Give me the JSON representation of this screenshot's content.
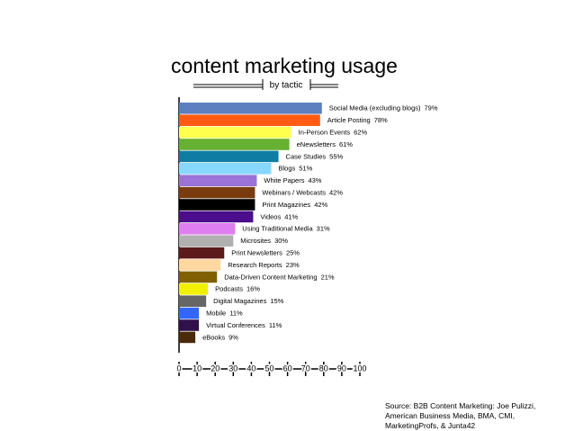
{
  "chart_data": {
    "type": "bar",
    "orientation": "horizontal",
    "title": "content marketing usage",
    "subtitle": "by tactic",
    "categories": [
      "Social Media (excluding blogs)",
      "Article Posting",
      "In-Person Events",
      "eNewsletters",
      "Case Studies",
      "Blogs",
      "White Papers",
      "Webinars / Webcasts",
      "Print Magazines",
      "Videos",
      "Using Traditional Media",
      "Microsites",
      "Print Newsletters",
      "Research Reports",
      "Data-Driven Content Marketing",
      "Podcasts",
      "Digital Magazines",
      "Mobile",
      "Virtual Conferences",
      "eBooks"
    ],
    "values": [
      79,
      78,
      62,
      61,
      55,
      51,
      43,
      42,
      42,
      41,
      31,
      30,
      25,
      23,
      21,
      16,
      15,
      11,
      11,
      9
    ],
    "value_labels": [
      "79%",
      "78%",
      "62%",
      "61%",
      "55%",
      "51%",
      "43%",
      "42%",
      "42%",
      "41%",
      "31%",
      "30%",
      "25%",
      "23%",
      "21%",
      "16%",
      "15%",
      "11%",
      "11%",
      "9%"
    ],
    "colors": [
      "#5b7fbf",
      "#ff5a12",
      "#ffff4d",
      "#66b032",
      "#0e7da3",
      "#87d8ff",
      "#9a72d8",
      "#7a3c0f",
      "#000000",
      "#4b0d8c",
      "#de7ef0",
      "#b0b0b0",
      "#5c1a1a",
      "#ffd8a0",
      "#806000",
      "#f0f000",
      "#666666",
      "#3366ff",
      "#30124a",
      "#4a2a0a"
    ],
    "xlim": [
      0,
      100
    ],
    "xticks": [
      0,
      10,
      20,
      30,
      40,
      50,
      60,
      70,
      80,
      90,
      100
    ],
    "source": "Source: B2B Content Marketing: Joe Pulizzi, American Business Media, BMA, CMI, MarketingProfs, & Junta42"
  }
}
